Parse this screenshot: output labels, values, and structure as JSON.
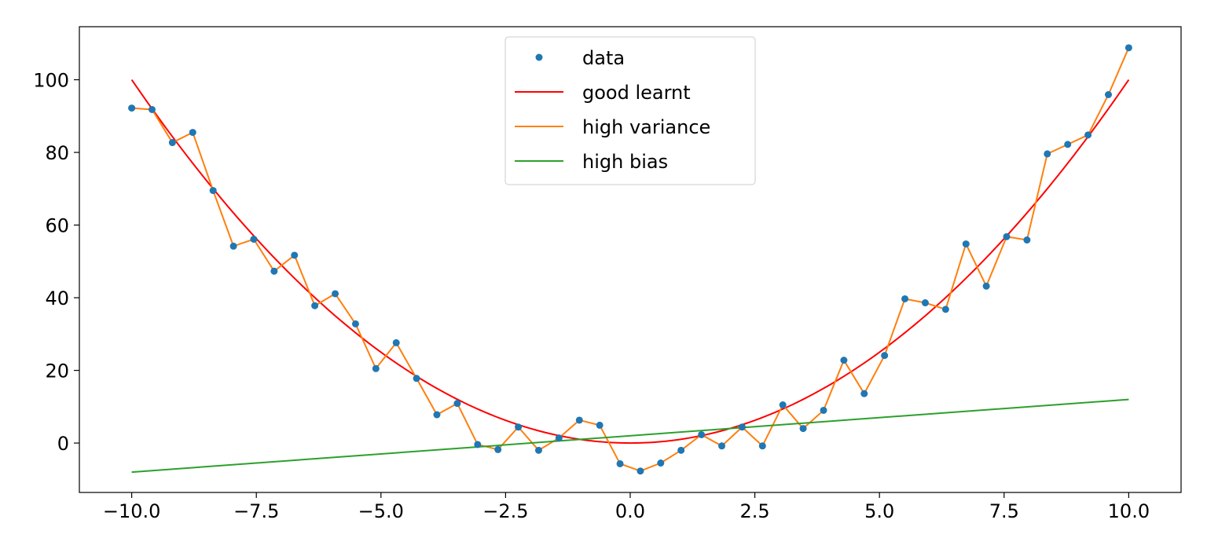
{
  "chart_data": {
    "type": "line",
    "title": "",
    "xlabel": "",
    "ylabel": "",
    "xlim": [
      -11.05,
      11.05
    ],
    "ylim": [
      -13.6,
      114.6
    ],
    "x_ticks": [
      -10.0,
      -7.5,
      -5.0,
      -2.5,
      0.0,
      2.5,
      5.0,
      7.5,
      10.0
    ],
    "x_tick_labels": [
      "−10.0",
      "−7.5",
      "−5.0",
      "−2.5",
      "0.0",
      "2.5",
      "5.0",
      "7.5",
      "10.0"
    ],
    "y_ticks": [
      0,
      20,
      40,
      60,
      80,
      100
    ],
    "y_tick_labels": [
      "0",
      "20",
      "40",
      "60",
      "80",
      "100"
    ],
    "grid": false,
    "legend_position": "top-center",
    "x": [
      -10.0,
      -9.592,
      -9.184,
      -8.776,
      -8.367,
      -7.959,
      -7.551,
      -7.143,
      -6.735,
      -6.327,
      -5.918,
      -5.51,
      -5.102,
      -4.694,
      -4.286,
      -3.878,
      -3.469,
      -3.061,
      -2.653,
      -2.245,
      -1.837,
      -1.429,
      -1.02,
      -0.612,
      -0.204,
      0.204,
      0.612,
      1.02,
      1.429,
      1.837,
      2.245,
      2.653,
      3.061,
      3.469,
      3.878,
      4.286,
      4.694,
      5.102,
      5.51,
      5.918,
      6.327,
      6.735,
      7.143,
      7.551,
      7.959,
      8.367,
      8.776,
      9.184,
      9.592,
      10.0
    ],
    "series": [
      {
        "name": "data",
        "kind": "scatter",
        "color": "#1f77b4",
        "values": [
          92.2,
          91.8,
          82.7,
          85.5,
          69.5,
          54.2,
          56.1,
          47.3,
          51.7,
          37.8,
          41.1,
          32.8,
          20.5,
          27.6,
          17.8,
          7.8,
          10.9,
          -0.4,
          -1.8,
          4.4,
          -2.0,
          1.4,
          6.3,
          4.9,
          -5.7,
          -7.7,
          -5.5,
          -2.0,
          2.3,
          -0.8,
          4.4,
          -0.8,
          10.5,
          4.0,
          9.0,
          22.8,
          13.6,
          24.1,
          39.7,
          38.6,
          36.8,
          54.8,
          43.2,
          56.8,
          55.9,
          79.6,
          82.2,
          84.8,
          95.9,
          108.8
        ]
      },
      {
        "name": "good learnt",
        "kind": "line",
        "color": "#ff0000",
        "function": "x^2"
      },
      {
        "name": "high variance",
        "kind": "line",
        "color": "#ff7f0e",
        "values": [
          92.2,
          91.8,
          82.7,
          85.5,
          69.5,
          54.2,
          56.1,
          47.3,
          51.7,
          37.8,
          41.1,
          32.8,
          20.5,
          27.6,
          17.8,
          7.8,
          10.9,
          -0.4,
          -1.8,
          4.4,
          -2.0,
          1.4,
          6.3,
          4.9,
          -5.7,
          -7.7,
          -5.5,
          -2.0,
          2.3,
          -0.8,
          4.4,
          -0.8,
          10.5,
          4.0,
          9.0,
          22.8,
          13.6,
          24.1,
          39.7,
          38.6,
          36.8,
          54.8,
          43.2,
          56.8,
          55.9,
          79.6,
          82.2,
          84.8,
          95.9,
          108.8
        ]
      },
      {
        "name": "high bias",
        "kind": "line",
        "color": "#2ca02c",
        "endpoints": [
          [
            -10.0,
            -8.0
          ],
          [
            10.0,
            12.0
          ]
        ]
      }
    ]
  }
}
